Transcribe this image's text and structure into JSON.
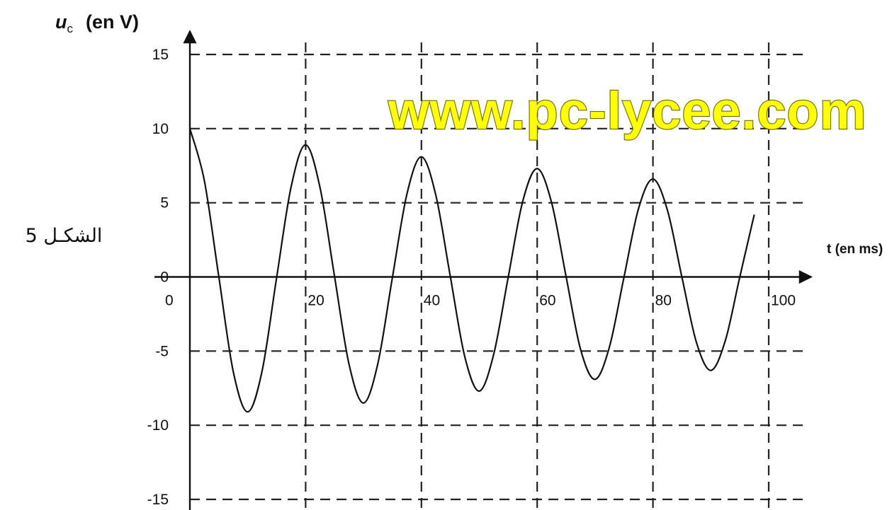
{
  "figure_label": "الشكـل 5",
  "watermark": "www.pc-lycee.com",
  "chart_data": {
    "type": "line",
    "title": "",
    "ylabel": "u",
    "ylabel_subscript": "c",
    "ylabel_unit": "(en V)",
    "xlabel": "t (en ms)",
    "xlim": [
      0,
      100
    ],
    "ylim": [
      -15,
      15
    ],
    "grid": true,
    "grid_style": "dashed",
    "x_ticks": [
      0,
      20,
      40,
      60,
      80,
      100
    ],
    "x_tick_labels": [
      "0",
      "20",
      "40",
      "60",
      "80",
      "100"
    ],
    "y_ticks": [
      15,
      10,
      5,
      0,
      -5,
      -10,
      -15
    ],
    "y_tick_labels": [
      "15",
      "10",
      "5",
      "0",
      "-5",
      "-10",
      "-15"
    ],
    "series": [
      {
        "color": "#111111",
        "x": [
          0,
          2.5,
          5,
          7.5,
          10,
          12.5,
          15,
          17.5,
          20,
          22.5,
          25,
          27.5,
          30,
          32.5,
          35,
          37.5,
          40,
          42.5,
          45,
          47.5,
          50,
          52.5,
          55,
          57.5,
          60,
          62.5,
          65,
          67.5,
          70,
          72.5,
          75,
          77.5,
          80,
          82.5,
          85,
          87.5,
          90,
          92.5,
          95,
          97.5
        ],
        "y": [
          10,
          6.5,
          0,
          -6.4,
          -9.1,
          -6.3,
          0,
          6.1,
          8.9,
          6.0,
          0,
          -5.9,
          -8.5,
          -5.8,
          0,
          5.6,
          8.1,
          5.5,
          0,
          -5.4,
          -7.7,
          -5.2,
          0,
          5.1,
          7.3,
          5.0,
          0,
          -4.9,
          -6.9,
          -4.7,
          0,
          4.6,
          6.6,
          4.5,
          0,
          -4.4,
          -6.3,
          -4.3,
          0,
          4.2
        ]
      }
    ]
  }
}
